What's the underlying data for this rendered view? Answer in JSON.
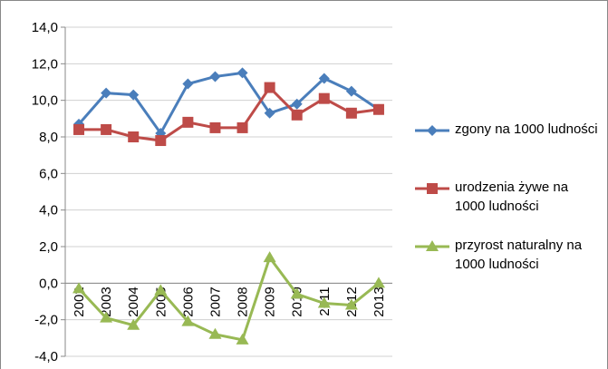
{
  "chart_data": {
    "type": "line",
    "categories": [
      "2002",
      "2003",
      "2004",
      "2005",
      "2006",
      "2007",
      "2008",
      "2009",
      "2010",
      "2011",
      "2012",
      "2013"
    ],
    "series": [
      {
        "name": "zgony na 1000 ludności",
        "color": "#4a7ebb",
        "marker": "diamond",
        "values": [
          8.7,
          10.4,
          10.3,
          8.2,
          10.9,
          11.3,
          11.5,
          9.3,
          9.8,
          11.2,
          10.5,
          9.5
        ]
      },
      {
        "name": "urodzenia żywe na 1000 ludności",
        "color": "#be4b48",
        "marker": "square",
        "values": [
          8.4,
          8.4,
          8.0,
          7.8,
          8.8,
          8.5,
          8.5,
          10.7,
          9.2,
          10.1,
          9.3,
          9.5
        ]
      },
      {
        "name": "przyrost naturalny na 1000 ludności",
        "color": "#98b954",
        "marker": "triangle",
        "values": [
          -0.3,
          -1.9,
          -2.3,
          -0.4,
          -2.1,
          -2.8,
          -3.1,
          1.4,
          -0.6,
          -1.1,
          -1.2,
          0.0
        ]
      }
    ],
    "ylim": [
      -4,
      14
    ],
    "yticks": [
      {
        "value": -4,
        "label": "-4,0"
      },
      {
        "value": -2,
        "label": "-2,0"
      },
      {
        "value": 0,
        "label": "0,0"
      },
      {
        "value": 2,
        "label": "2,0"
      },
      {
        "value": 4,
        "label": "4,0"
      },
      {
        "value": 6,
        "label": "6,0"
      },
      {
        "value": 8,
        "label": "8,0"
      },
      {
        "value": 10,
        "label": "10,0"
      },
      {
        "value": 12,
        "label": "12,0"
      },
      {
        "value": 14,
        "label": "14,0"
      }
    ],
    "grid": true,
    "legend": "right"
  }
}
